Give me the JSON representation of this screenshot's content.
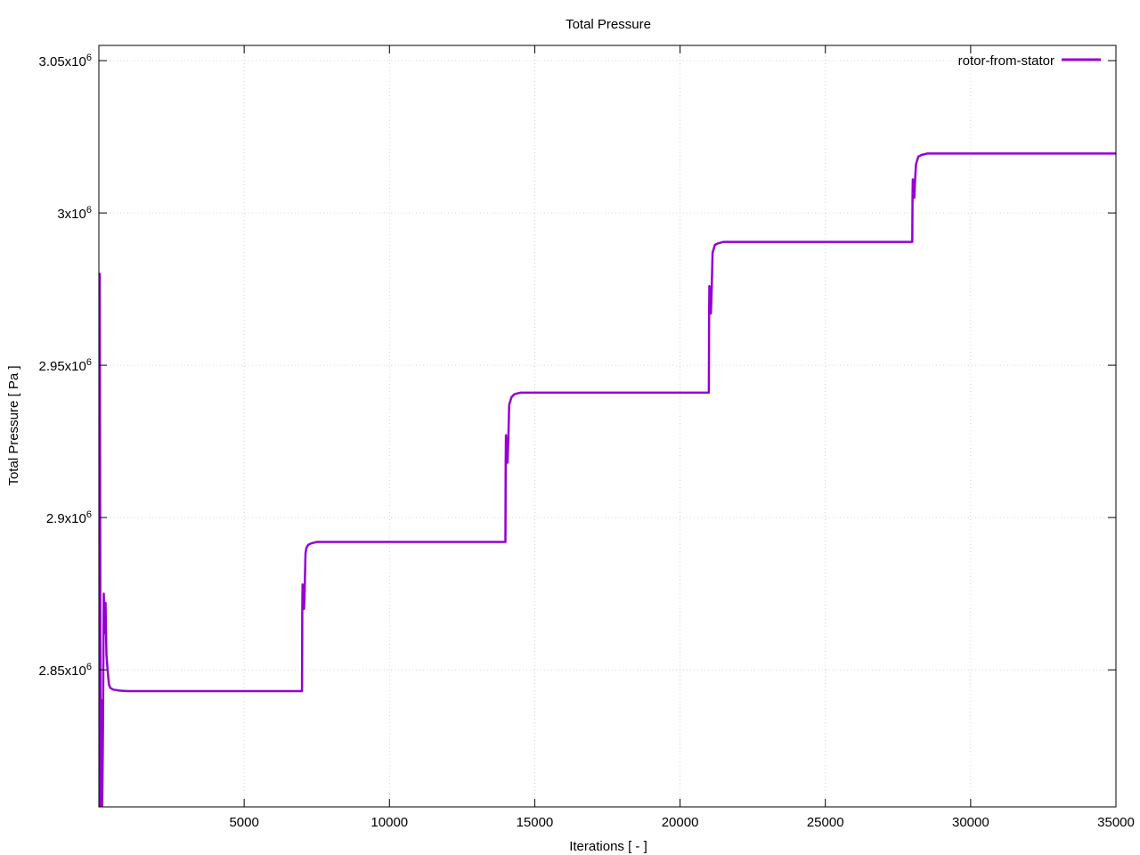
{
  "chart_data": {
    "type": "line",
    "title": "Total Pressure",
    "xlabel": "Iterations [ - ]",
    "ylabel": "Total Pressure [ Pa ]",
    "xlim": [
      0,
      35000
    ],
    "ylim": [
      2805000,
      3055000
    ],
    "grid": true,
    "legend_position": "top-right",
    "x_ticks": [
      5000,
      10000,
      15000,
      20000,
      25000,
      30000,
      35000
    ],
    "x_tick_labels": [
      "5000",
      "10000",
      "15000",
      "20000",
      "25000",
      "30000",
      "35000"
    ],
    "y_ticks": [
      2850000,
      2900000,
      2950000,
      3000000,
      3050000
    ],
    "y_tick_labels": [
      {
        "mantissa": "2.85x10",
        "exp": "6"
      },
      {
        "mantissa": "2.9x10",
        "exp": "6"
      },
      {
        "mantissa": "2.95x10",
        "exp": "6"
      },
      {
        "mantissa": "3x10",
        "exp": "6"
      },
      {
        "mantissa": "3.05x10",
        "exp": "6"
      }
    ],
    "series": [
      {
        "name": "rotor-from-stator",
        "color": "#9400d3",
        "x": [
          0,
          30,
          60,
          90,
          110,
          140,
          170,
          200,
          230,
          260,
          300,
          350,
          400,
          500,
          700,
          1000,
          1500,
          2000,
          2500,
          2800,
          3500,
          5000,
          6990,
          7000,
          7010,
          7060,
          7080,
          7110,
          7140,
          7200,
          7300,
          7500,
          8000,
          8500,
          9000,
          10000,
          12000,
          13990,
          14000,
          14010,
          14060,
          14090,
          14120,
          14200,
          14300,
          14500,
          15000,
          15500,
          16000,
          18000,
          20990,
          21000,
          21010,
          21060,
          21090,
          21120,
          21200,
          21300,
          21500,
          22000,
          22500,
          22800,
          25000,
          27990,
          28000,
          28010,
          28060,
          28090,
          28120,
          28200,
          28300,
          28500,
          29000,
          29500,
          29800,
          32000,
          35000
        ],
        "y": [
          2800000,
          2980000,
          2800000,
          2840000,
          2800000,
          2830000,
          2875000,
          2862000,
          2872000,
          2855000,
          2850000,
          2845000,
          2844000,
          2843500,
          2843200,
          2843000,
          2843000,
          2843000,
          2843000,
          2843000,
          2843000,
          2843000,
          2843000,
          2869000,
          2878000,
          2870000,
          2875000,
          2888000,
          2890000,
          2891000,
          2891500,
          2892000,
          2892000,
          2892000,
          2892000,
          2892000,
          2892000,
          2892000,
          2918000,
          2927000,
          2918000,
          2925000,
          2937000,
          2939500,
          2940500,
          2941000,
          2941000,
          2941000,
          2941000,
          2941000,
          2941000,
          2967000,
          2976000,
          2967000,
          2975000,
          2987000,
          2989500,
          2990000,
          2990500,
          2990500,
          2990500,
          2990500,
          2990500,
          2990500,
          3005000,
          3011000,
          3005000,
          3011000,
          3016000,
          3018500,
          3019000,
          3019500,
          3019500,
          3019500,
          3019500,
          3019500,
          3019500
        ]
      }
    ]
  }
}
